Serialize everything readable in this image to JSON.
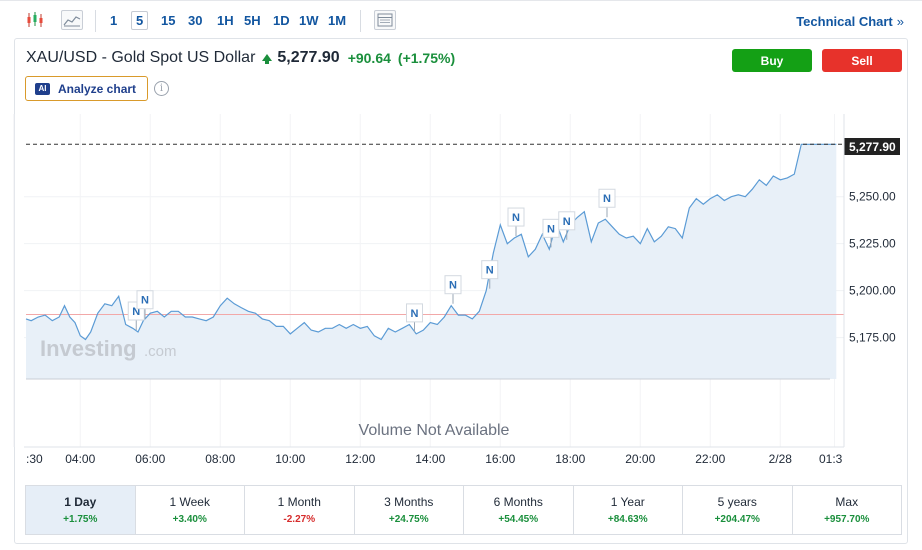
{
  "toolbar": {
    "intervals": [
      "1",
      "5",
      "15",
      "30",
      "1H",
      "5H",
      "1D",
      "1W",
      "1M"
    ],
    "active_interval": "5",
    "technical_chart_label": "Technical Chart",
    "technical_chart_chevron": "»",
    "icons": [
      "candlestick-icon",
      "area-chart-icon",
      "table-icon"
    ]
  },
  "header": {
    "symbol": "XAU/USD - Gold Spot US Dollar",
    "price": "5,277.90",
    "change": "+90.64",
    "change_pct": "(+1.75%)",
    "direction": "up",
    "buy_label": "Buy",
    "sell_label": "Sell",
    "analyze_badge": "AI",
    "analyze_label": "Analyze chart",
    "info_glyph": "i"
  },
  "colors": {
    "up": "#1a8f3c",
    "down": "#d62c2c",
    "buy": "#14a015",
    "sell": "#e7322b",
    "line": "#5b9bd5",
    "area": "#e8f0f8",
    "reference_line": "#f2a8a8",
    "link": "#1256a0"
  },
  "chart_data": {
    "type": "area",
    "x_ticks": [
      ":30",
      "04:00",
      "06:00",
      "08:00",
      "10:00",
      "12:00",
      "14:00",
      "16:00",
      "18:00",
      "20:00",
      "22:00",
      "2/28",
      "01:3"
    ],
    "y_ticks": [
      "5,250.00",
      "5,225.00",
      "5,200.00",
      "5,175.00"
    ],
    "y_tick_values": [
      5250,
      5225,
      5200,
      5175
    ],
    "ylim": [
      5153,
      5294
    ],
    "xlim": [
      2.45,
      25.6
    ],
    "last_price_label": "5,277.90",
    "last_price": 5277.9,
    "reference_price": 5187.3,
    "watermark": "Investing",
    "watermark_suffix": ".com",
    "volume_label": "Volume Not Available",
    "news_marker_label": "N",
    "series": [
      {
        "x": [
          2.45,
          2.6,
          2.8,
          3.0,
          3.2,
          3.4,
          3.55,
          3.7,
          3.85,
          4.0,
          4.15,
          4.3,
          4.5,
          4.7,
          4.9,
          5.1,
          5.3,
          5.5,
          5.65,
          5.8,
          6.0,
          6.2,
          6.4,
          6.6,
          6.8,
          7.0,
          7.2,
          7.4,
          7.6,
          7.8,
          8.0,
          8.2,
          8.4,
          8.6,
          8.8,
          9.0,
          9.2,
          9.4,
          9.6,
          9.8,
          10.0,
          10.2,
          10.4,
          10.6,
          10.8,
          11.0,
          11.2,
          11.4,
          11.6,
          11.8,
          12.0,
          12.2,
          12.4,
          12.6,
          12.8,
          13.0,
          13.2,
          13.4,
          13.6,
          13.8,
          14.0,
          14.2,
          14.4,
          14.6,
          14.8,
          15.0,
          15.2,
          15.4,
          15.6,
          15.8,
          16.0,
          16.2,
          16.4,
          16.6,
          16.8,
          17.0,
          17.2,
          17.4,
          17.6,
          17.8,
          18.0,
          18.2,
          18.4,
          18.6,
          18.8,
          19.0,
          19.2,
          19.4,
          19.6,
          19.8,
          20.0,
          20.2,
          20.4,
          20.6,
          20.8,
          21.0,
          21.2,
          21.4,
          21.6,
          21.8,
          22.0,
          22.2,
          22.4,
          22.6,
          22.8,
          23.0,
          23.2,
          23.4,
          23.6,
          23.8,
          24.0,
          24.2,
          24.4,
          24.6,
          24.8,
          25.0,
          25.2,
          25.4,
          25.6
        ],
        "values": [
          5185,
          5184,
          5186,
          5187,
          5184,
          5186,
          5192,
          5186,
          5183,
          5176,
          5174,
          5178,
          5188,
          5193,
          5192,
          5197,
          5182,
          5180,
          5178,
          5184,
          5188,
          5189,
          5186,
          5189,
          5189,
          5186,
          5186,
          5185,
          5184,
          5186,
          5192,
          5196,
          5193,
          5191,
          5189,
          5188,
          5185,
          5184,
          5181,
          5181,
          5177,
          5180,
          5183,
          5179,
          5178,
          5180,
          5180,
          5182,
          5180,
          5182,
          5180,
          5181,
          5176,
          5174,
          5180,
          5178,
          5180,
          5182,
          5177,
          5179,
          5183,
          5182,
          5186,
          5192,
          5187,
          5187,
          5185,
          5189,
          5200,
          5220,
          5235,
          5225,
          5228,
          5230,
          5218,
          5222,
          5230,
          5222,
          5236,
          5226,
          5235,
          5239,
          5242,
          5226,
          5236,
          5238,
          5234,
          5230,
          5228,
          5229,
          5225,
          5233,
          5226,
          5229,
          5234,
          5233,
          5228,
          5244,
          5249,
          5246,
          5249,
          5251,
          5248,
          5250,
          5251,
          5250,
          5254,
          5259,
          5256,
          5261,
          5259,
          5260,
          5262,
          5277.9,
          5277.9,
          5277.9,
          5277.9,
          5277.9,
          5277.9
        ]
      }
    ],
    "news_x": [
      5.6,
      5.85,
      13.55,
      14.65,
      15.7,
      16.45,
      17.45,
      17.9,
      19.05
    ]
  },
  "periods": [
    {
      "label": "1 Day",
      "change": "+1.75%",
      "direction": "pos",
      "active": true
    },
    {
      "label": "1 Week",
      "change": "+3.40%",
      "direction": "pos",
      "active": false
    },
    {
      "label": "1 Month",
      "change": "-2.27%",
      "direction": "neg",
      "active": false
    },
    {
      "label": "3 Months",
      "change": "+24.75%",
      "direction": "pos",
      "active": false
    },
    {
      "label": "6 Months",
      "change": "+54.45%",
      "direction": "pos",
      "active": false
    },
    {
      "label": "1 Year",
      "change": "+84.63%",
      "direction": "pos",
      "active": false
    },
    {
      "label": "5 years",
      "change": "+204.47%",
      "direction": "pos",
      "active": false
    },
    {
      "label": "Max",
      "change": "+957.70%",
      "direction": "pos",
      "active": false
    }
  ]
}
